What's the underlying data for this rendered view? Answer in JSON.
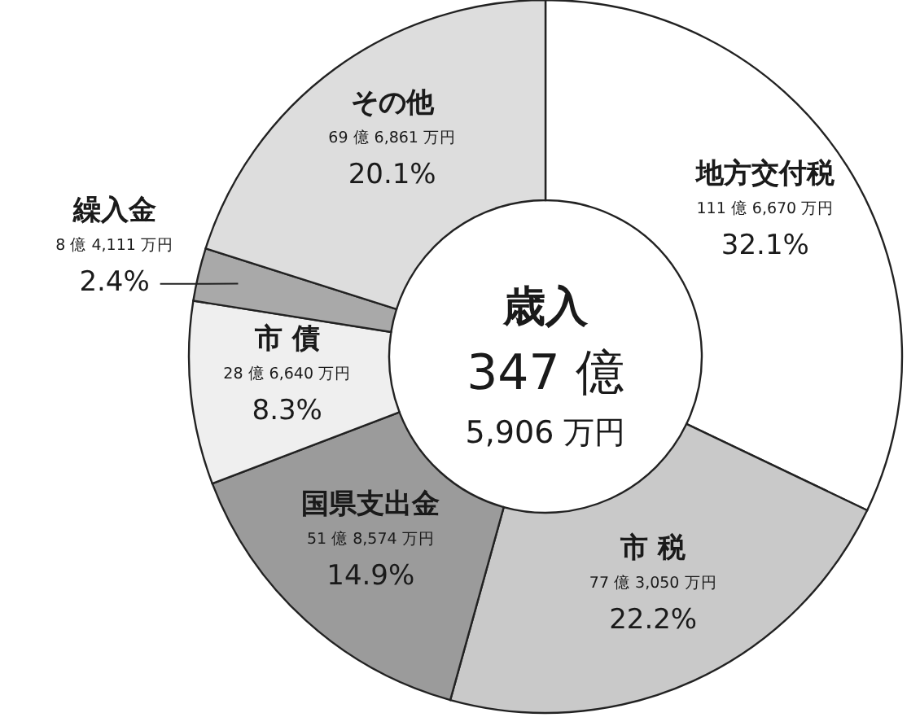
{
  "chart_data": {
    "type": "donut",
    "title": "歳入",
    "subtitle": "347 億\n5,906 万円",
    "categories": [
      "地方交付税",
      "市 税",
      "国県支出金",
      "市 債",
      "繰入金",
      "その他"
    ],
    "values": [
      32.1,
      22.2,
      14.9,
      8.3,
      2.4,
      20.1
    ],
    "colors": [
      "#ffffff",
      "#c9c9c9",
      "#9b9b9b",
      "#efefef",
      "#a9a9a9",
      "#dddddd"
    ],
    "value_labels": [
      "32.1%",
      "22.2%",
      "14.9%",
      "8.3%",
      "2.4%",
      "20.1%"
    ],
    "annotations": [
      "111 億 6,670 万円",
      "77 億 3,050 万円",
      "51 億 8,574 万円",
      "28 億 6,640 万円",
      "8 億 4,111 万円",
      "69 億 6,861 万円"
    ]
  }
}
